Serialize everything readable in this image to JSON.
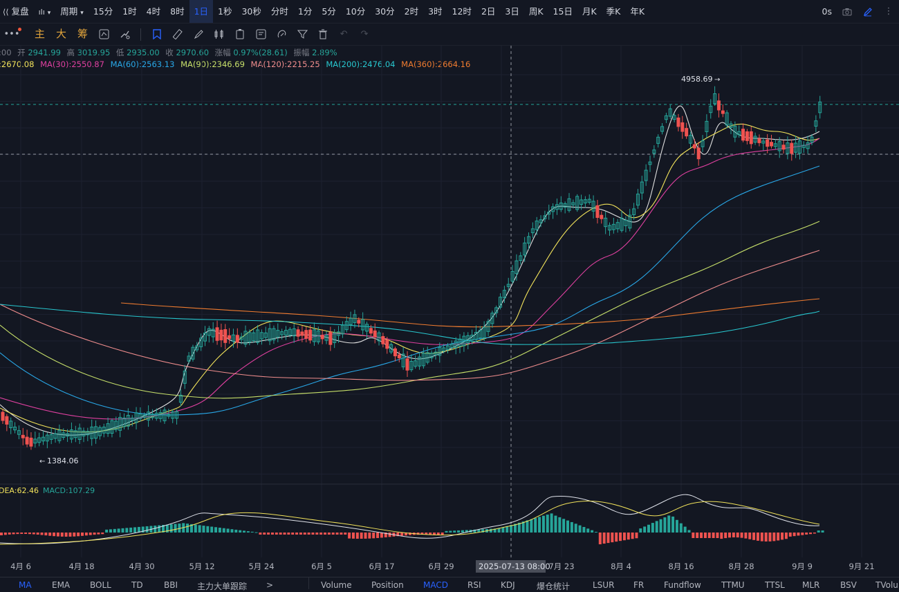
{
  "toolbar": {
    "restore_label": "复盘",
    "period_label": "周期",
    "intervals": [
      "15分",
      "1时",
      "4时",
      "8时",
      "1日",
      "1秒",
      "30秒",
      "分时",
      "1分",
      "5分",
      "10分",
      "30分",
      "2时",
      "3时",
      "12时",
      "2日",
      "3日",
      "周K",
      "15日",
      "月K",
      "季K",
      "年K"
    ],
    "active_interval": "1日",
    "delay_label": "0s"
  },
  "toolbar2": {
    "main_label": "主",
    "big_label": "大",
    "chips_label": "筹"
  },
  "ohlc": {
    "time_partial": ":00",
    "open_label": "开",
    "open": "2941.99",
    "high_label": "高",
    "high": "3019.95",
    "low_label": "低",
    "low": "2935.00",
    "close_label": "收",
    "close": "2970.60",
    "change_label": "涨幅",
    "change": "0.97%(28.61)",
    "amp_label": "振幅",
    "amp": "2.89%"
  },
  "ma_legend": {
    "ma_partial": ":2670.08",
    "ma30": "MA(30):2550.87",
    "ma60": "MA(60):2563.13",
    "ma90": "MA(90):2346.69",
    "ma120": "MA(120):2215.25",
    "ma200": "MA(200):2476.04",
    "ma360": "MA(360):2664.16"
  },
  "colors": {
    "up": "#26a69a",
    "down": "#ef5350",
    "ma_short": "#e0e0e0",
    "ma_yellow": "#f2e35b",
    "ma30": "#e040a0",
    "ma60": "#29a8e8",
    "ma90": "#c7e06a",
    "ma120": "#f08d8d",
    "ma200": "#28c8d0",
    "ma360": "#f07c30"
  },
  "annotations": {
    "high_label": "4958.69",
    "low_label": "1384.06",
    "crosshair_date": "2025-07-13 08:00"
  },
  "macd_legend": {
    "dea": "DEA:62.46",
    "macd": "MACD:107.29"
  },
  "x_axis_labels": [
    "4月 6",
    "4月 18",
    "4月 30",
    "5月 12",
    "5月 24",
    "6月 5",
    "6月 17",
    "6月 29",
    "7月 23",
    "8月 4",
    "8月 16",
    "8月 28",
    "9月 9",
    "9月 21"
  ],
  "bottom_tabs_left": [
    "MA",
    "EMA",
    "BOLL",
    "TD",
    "BBI",
    "主力大单跟踪",
    ">"
  ],
  "bottom_tabs_right": [
    "Volume",
    "Position",
    "MACD",
    "RSI",
    "KDJ",
    "爆仓统计",
    "LSUR",
    "FR",
    "Fundflow",
    "TTMU",
    "TTSL",
    "MLR",
    "BSV",
    "TVolu"
  ],
  "active_bottom_tabs": [
    "MA",
    "MACD"
  ]
}
